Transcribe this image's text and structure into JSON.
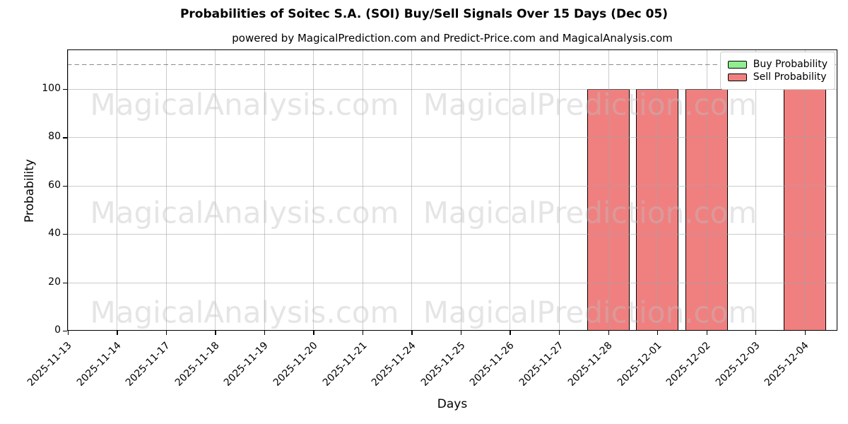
{
  "chart_data": {
    "type": "bar",
    "title": "Probabilities of Soitec S.A. (SOI) Buy/Sell Signals Over 15 Days (Dec 05)",
    "subtitle": "powered by MagicalPrediction.com and Predict-Price.com and MagicalAnalysis.com",
    "xlabel": "Days",
    "ylabel": "Probability",
    "categories": [
      "2025-11-13",
      "2025-11-14",
      "2025-11-17",
      "2025-11-18",
      "2025-11-19",
      "2025-11-20",
      "2025-11-21",
      "2025-11-24",
      "2025-11-25",
      "2025-11-26",
      "2025-11-27",
      "2025-11-28",
      "2025-12-01",
      "2025-12-02",
      "2025-12-03",
      "2025-12-04"
    ],
    "series": [
      {
        "name": "Buy Probability",
        "color": "#90ee90",
        "values": [
          0,
          0,
          0,
          0,
          0,
          0,
          0,
          0,
          0,
          0,
          0,
          0,
          0,
          0,
          0,
          0
        ]
      },
      {
        "name": "Sell Probability",
        "color": "#f08080",
        "values": [
          0,
          0,
          0,
          0,
          0,
          0,
          0,
          0,
          0,
          0,
          0,
          100,
          100,
          100,
          0,
          100
        ]
      }
    ],
    "ylim": [
      0,
      116
    ],
    "yticks": [
      0,
      20,
      40,
      60,
      80,
      100
    ],
    "reference_line": {
      "value": 110,
      "style": "dashed",
      "color": "#8a8a8a"
    },
    "grid": true,
    "legend_position": "upper right",
    "watermarks": [
      "MagicalAnalysis.com",
      "MagicalPrediction.com"
    ],
    "colors": {
      "bar_edge": "#000000",
      "grid": "#b0b0b0",
      "background": "#ffffff"
    }
  }
}
